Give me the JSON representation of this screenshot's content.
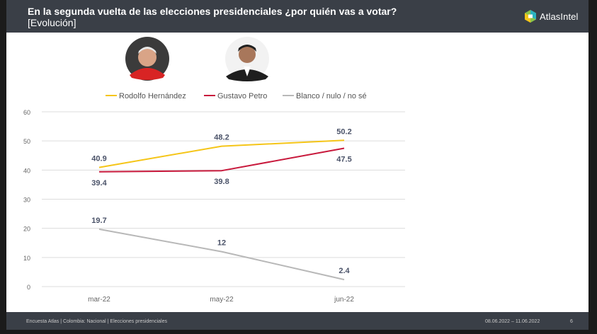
{
  "header": {
    "title": "En la segunda vuelta de las elecciones presidenciales ¿por quién vas a votar?",
    "subtitle": "[Evolución]",
    "brand": "AtlasIntel"
  },
  "footer": {
    "source": "Encuesta Atlas | Colombia: Nacional | Elecciones presidenciales",
    "date_range": "08.06.2022 – 11.06.2022",
    "page": "6"
  },
  "colors": {
    "hernandez": "#f5c518",
    "petro": "#c8193c",
    "blanco": "#b8b8b8",
    "grid": "#dcdcdc",
    "label": "#4a5268"
  },
  "chart_data": {
    "type": "line",
    "title": "",
    "xlabel": "",
    "ylabel": "",
    "categories": [
      "mar-22",
      "may-22",
      "jun-22"
    ],
    "ylim": [
      0,
      60
    ],
    "yticks": [
      "0",
      "10",
      "20",
      "30",
      "40",
      "50",
      "60"
    ],
    "series": [
      {
        "name": "Rodolfo Hernández",
        "values": [
          40.9,
          48.2,
          50.2
        ],
        "labels": [
          "40.9",
          "48.2",
          "50.2"
        ],
        "label_pos": [
          "above",
          "above",
          "above"
        ]
      },
      {
        "name": "Gustavo Petro",
        "values": [
          39.4,
          39.8,
          47.5
        ],
        "labels": [
          "39.4",
          "39.8",
          "47.5"
        ],
        "label_pos": [
          "below",
          "below",
          "below"
        ]
      },
      {
        "name": "Blanco / nulo / no sé",
        "values": [
          19.7,
          12,
          2.4
        ],
        "labels": [
          "19.7",
          "12",
          "2.4"
        ],
        "label_pos": [
          "above",
          "above",
          "above"
        ]
      }
    ],
    "legend_position": "top"
  }
}
